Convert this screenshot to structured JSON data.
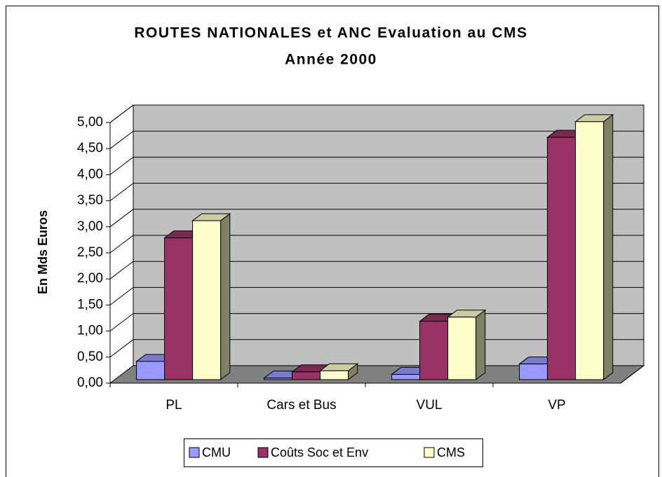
{
  "chart_data": {
    "type": "bar3d",
    "title": "ROUTES NATIONALES et ANC  Evaluation au CMS",
    "subtitle": "Année 2000",
    "y_label": "En Mds Euros",
    "categories": [
      "PL",
      "Cars et Bus",
      "VUL",
      "VP"
    ],
    "series": [
      {
        "name": "CMU",
        "color": "#9999ff",
        "values": [
          0.35,
          0.03,
          0.1,
          0.3
        ]
      },
      {
        "name": "Coûts Soc et Env",
        "color": "#993366",
        "values": [
          2.72,
          0.15,
          1.12,
          4.65
        ]
      },
      {
        "name": "CMS",
        "color": "#ffffcc",
        "values": [
          3.05,
          0.17,
          1.2,
          4.95
        ]
      }
    ],
    "ylim": [
      0,
      5
    ],
    "yticks": [
      {
        "value": 0,
        "label": "0,00"
      },
      {
        "value": 0.5,
        "label": "0,50"
      },
      {
        "value": 1,
        "label": "1,00"
      },
      {
        "value": 1.5,
        "label": "1,50"
      },
      {
        "value": 2,
        "label": "2,00"
      },
      {
        "value": 2.5,
        "label": "2,50"
      },
      {
        "value": 3,
        "label": "3,00"
      },
      {
        "value": 3.5,
        "label": "3,50"
      },
      {
        "value": 4,
        "label": "4,00"
      },
      {
        "value": 4.5,
        "label": "4,50"
      },
      {
        "value": 5,
        "label": "5,00"
      }
    ],
    "grid": true,
    "legend": "bottom"
  }
}
